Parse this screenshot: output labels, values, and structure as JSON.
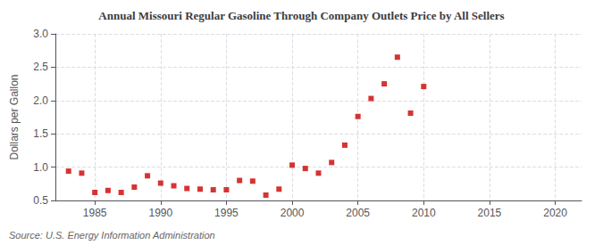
{
  "chart_data": {
    "type": "scatter",
    "title": "Annual Missouri Regular Gasoline Through Company Outlets Price by All Sellers",
    "ylabel": "Dollars per Gallon",
    "source": "Source: U.S. Energy Information Administration",
    "x": [
      1983,
      1984,
      1985,
      1986,
      1987,
      1988,
      1989,
      1990,
      1991,
      1992,
      1993,
      1994,
      1995,
      1996,
      1997,
      1998,
      1999,
      2000,
      2001,
      2002,
      2003,
      2004,
      2005,
      2006,
      2007,
      2008,
      2009,
      2010
    ],
    "values": [
      0.94,
      0.91,
      0.62,
      0.65,
      0.62,
      0.7,
      0.87,
      0.76,
      0.72,
      0.68,
      0.67,
      0.66,
      0.66,
      0.8,
      0.79,
      0.58,
      0.67,
      1.03,
      0.98,
      0.91,
      1.07,
      1.33,
      1.76,
      2.03,
      2.25,
      2.65,
      1.81,
      2.21
    ],
    "color": "#cc0000",
    "marker": "square",
    "xlim": [
      1982,
      2022
    ],
    "xticks": [
      1985,
      1990,
      1995,
      2000,
      2005,
      2010,
      2015,
      2020
    ],
    "ylim": [
      0.5,
      3.0
    ],
    "yticks": [
      0.5,
      {
        "value": 1.0,
        "label": "1.0"
      },
      1.5,
      {
        "value": 2.0,
        "label": "2.0"
      },
      2.5,
      {
        "value": 3.0,
        "label": "3.0"
      }
    ],
    "grid": true
  }
}
